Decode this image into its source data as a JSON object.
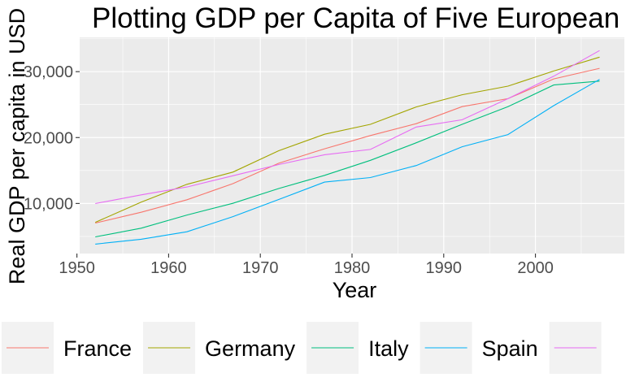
{
  "chart_data": {
    "type": "line",
    "title": "Plotting GDP per Capita of Five European C",
    "xlabel": "Year",
    "ylabel": "Real GDP per capita in USD",
    "xlim": [
      1950.3,
      2009.7
    ],
    "ylim": [
      2400,
      35200
    ],
    "x": [
      1952,
      1957,
      1962,
      1967,
      1972,
      1977,
      1982,
      1987,
      1992,
      1997,
      2002,
      2007
    ],
    "x_ticks": [
      1950,
      1960,
      1970,
      1980,
      1990,
      2000
    ],
    "x_tick_labels": [
      "1950",
      "1960",
      "1970",
      "1980",
      "1990",
      "2000"
    ],
    "y_ticks": [
      10000,
      20000,
      30000
    ],
    "y_tick_labels": [
      "10,000",
      "20,000",
      "30,000"
    ],
    "grid": true,
    "legend_position": "bottom",
    "series": [
      {
        "name": "France",
        "color": "#F8766D",
        "values": [
          7030,
          8660,
          10560,
          13000,
          16100,
          18300,
          20300,
          22100,
          24700,
          25900,
          28900,
          30500
        ]
      },
      {
        "name": "Germany",
        "color": "#A3A500",
        "values": [
          7140,
          10190,
          12900,
          14750,
          18000,
          20500,
          22000,
          24650,
          26500,
          27800,
          30100,
          32200
        ]
      },
      {
        "name": "Italy",
        "color": "#00BF7D",
        "values": [
          4930,
          6250,
          8240,
          10020,
          12270,
          14260,
          16540,
          19210,
          22010,
          24680,
          27970,
          28570
        ]
      },
      {
        "name": "Spain",
        "color": "#00B0F6",
        "values": [
          3830,
          4570,
          5700,
          8000,
          10600,
          13240,
          13930,
          15760,
          18600,
          20450,
          24840,
          28820
        ]
      },
      {
        "name": "",
        "color": "#E76BF3",
        "values": [
          9980,
          11300,
          12500,
          14200,
          15900,
          17400,
          18200,
          21600,
          22700,
          25900,
          29300,
          33200
        ]
      }
    ]
  }
}
